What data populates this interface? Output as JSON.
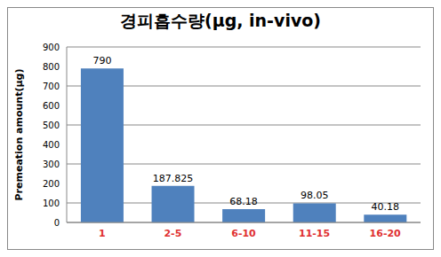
{
  "chart_data": {
    "type": "bar",
    "title": "경피흡수량(μg, in-vivo)",
    "y_label": "Premeation amount(μg)",
    "categories": [
      "1",
      "2-5",
      "6-10",
      "11-15",
      "16-20"
    ],
    "values": [
      790,
      187.825,
      68.18,
      98.05,
      40.18
    ],
    "color": "#4f81bd",
    "ylim": [
      0,
      900
    ],
    "yticks": [
      0,
      100,
      200,
      300,
      400,
      500,
      600,
      700,
      800,
      900
    ],
    "grid": true,
    "data_labels": true
  }
}
